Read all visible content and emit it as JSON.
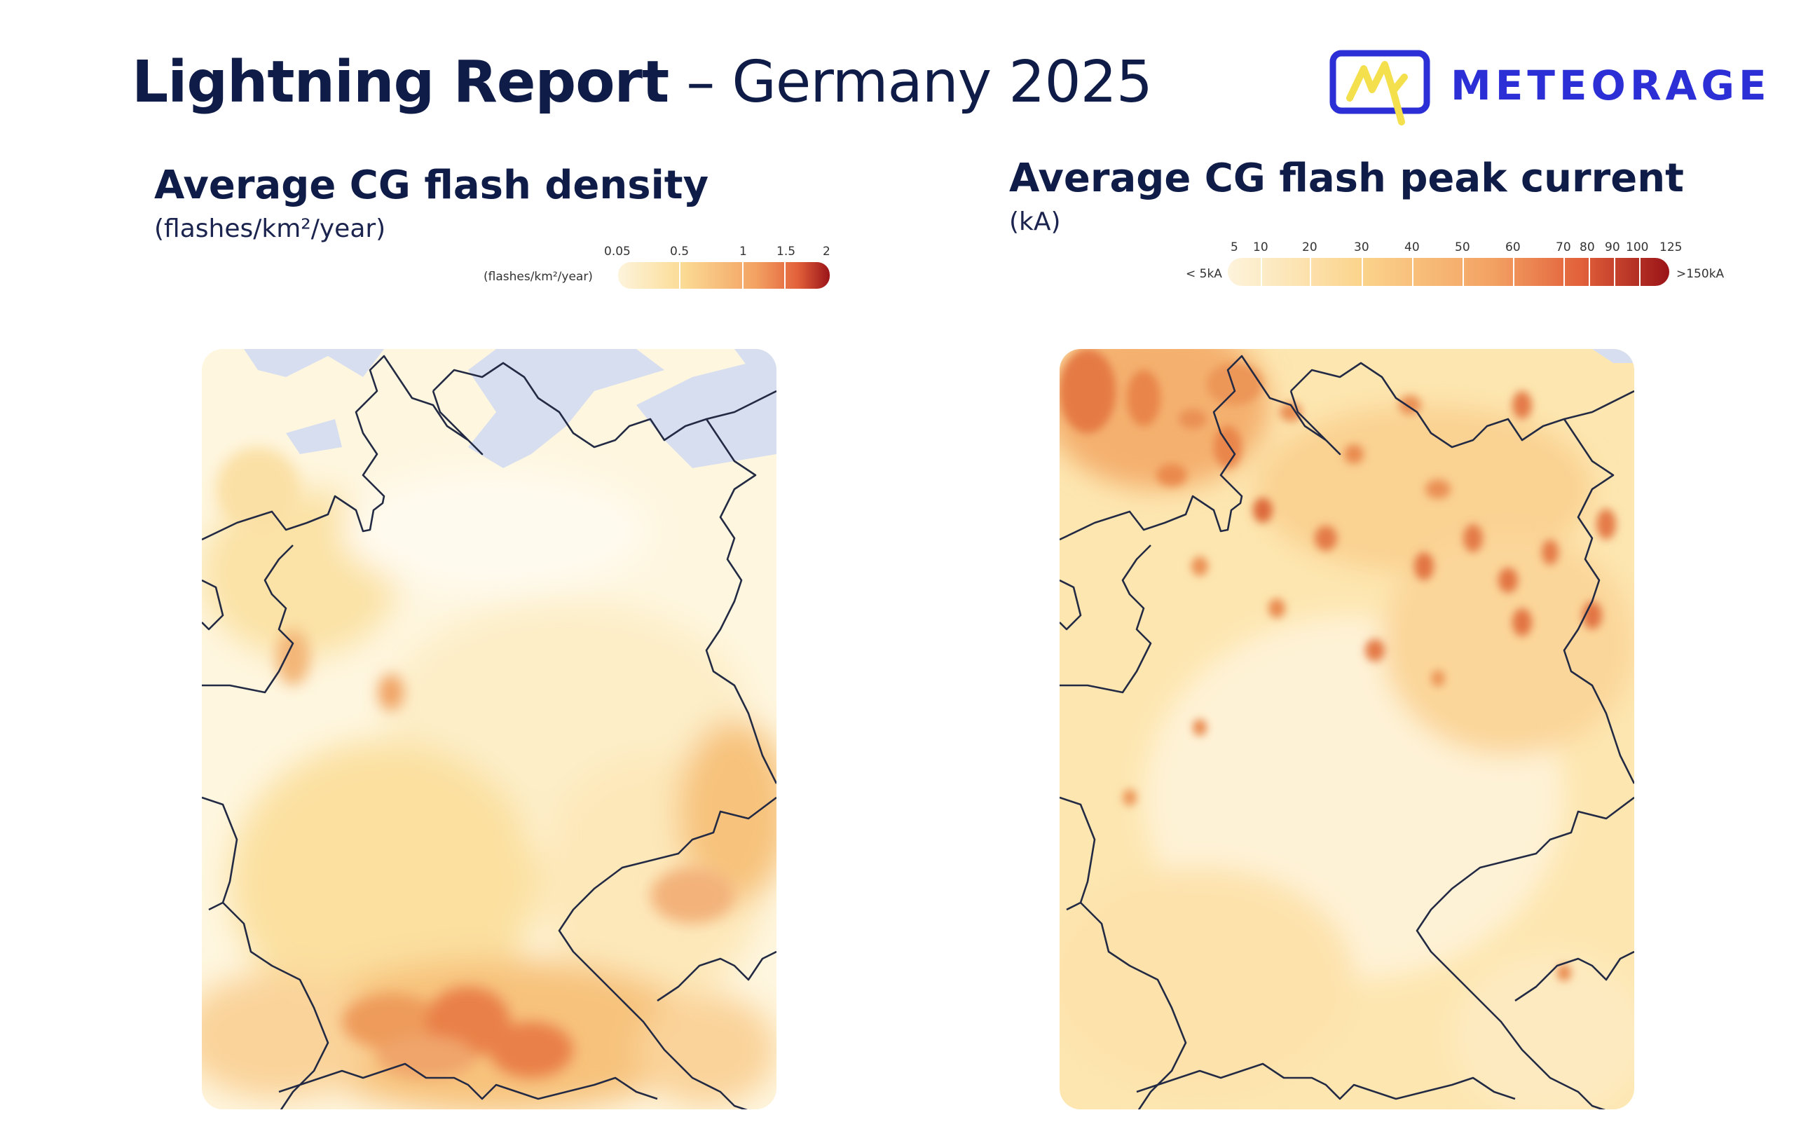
{
  "header": {
    "title_bold": "Lightning Report",
    "title_rest": "– Germany 2025"
  },
  "logo": {
    "name": "METEORAGE",
    "icon": "lightning-m-logo-icon",
    "color": "#2d2fd6",
    "accent": "#f4e04d"
  },
  "panels": [
    {
      "title": "Average CG flash density",
      "unit": "(flashes/km²/year)",
      "legend": {
        "unit_label": "(flashes/km²/year)",
        "ticks": [
          "0.05",
          "0.5",
          "1",
          "1.5",
          "2"
        ],
        "colors": [
          "#fdf1d4",
          "#fbd48c",
          "#f39a52",
          "#e2603a",
          "#a8191c"
        ]
      }
    },
    {
      "title": "Average CG flash peak current",
      "unit": "(kA)",
      "legend": {
        "low_label": "< 5kA",
        "high_label": ">150kA",
        "ticks": [
          "5",
          "10",
          "20",
          "30",
          "40",
          "50",
          "60",
          "70",
          "80",
          "90",
          "100",
          "125"
        ],
        "colors": [
          "#fdf1d4",
          "#fbd48c",
          "#f39a52",
          "#e2603a",
          "#a8191c"
        ]
      }
    }
  ]
}
